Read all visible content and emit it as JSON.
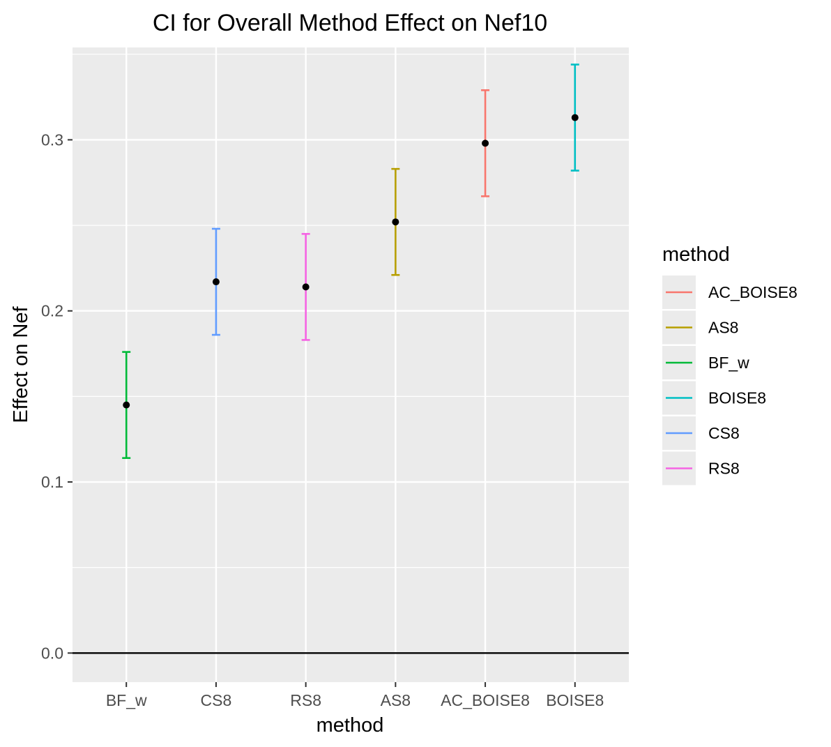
{
  "chart_data": {
    "type": "errorbar",
    "title": "CI for Overall Method Effect on Nef10",
    "xlabel": "method",
    "ylabel": "Effect on Nef",
    "categories": [
      "BF_w",
      "CS8",
      "RS8",
      "AS8",
      "AC_BOISE8",
      "BOISE8"
    ],
    "ylim": [
      -0.017,
      0.354
    ],
    "yticks": [
      0.0,
      0.1,
      0.2,
      0.3
    ],
    "ytick_labels": [
      "0.0",
      "0.1",
      "0.2",
      "0.3"
    ],
    "grid": true,
    "reference_line_y": 0.0,
    "points": [
      {
        "method": "BF_w",
        "estimate": 0.145,
        "lower": 0.114,
        "upper": 0.176
      },
      {
        "method": "CS8",
        "estimate": 0.217,
        "lower": 0.186,
        "upper": 0.248
      },
      {
        "method": "RS8",
        "estimate": 0.214,
        "lower": 0.183,
        "upper": 0.245
      },
      {
        "method": "AS8",
        "estimate": 0.252,
        "lower": 0.221,
        "upper": 0.283
      },
      {
        "method": "AC_BOISE8",
        "estimate": 0.298,
        "lower": 0.267,
        "upper": 0.329
      },
      {
        "method": "BOISE8",
        "estimate": 0.313,
        "lower": 0.282,
        "upper": 0.344
      }
    ],
    "legend": {
      "title": "method",
      "placement": "right",
      "entries": [
        {
          "label": "AC_BOISE8",
          "color": "#F8766D"
        },
        {
          "label": "AS8",
          "color": "#B79F00"
        },
        {
          "label": "BF_w",
          "color": "#00BA38"
        },
        {
          "label": "BOISE8",
          "color": "#00BFC4"
        },
        {
          "label": "CS8",
          "color": "#619CFF"
        },
        {
          "label": "RS8",
          "color": "#F564E3"
        }
      ]
    },
    "colors": {
      "panel_background": "#EBEBEB",
      "grid": "#FFFFFF",
      "point": "#000000",
      "reference_line": "#000000"
    }
  }
}
